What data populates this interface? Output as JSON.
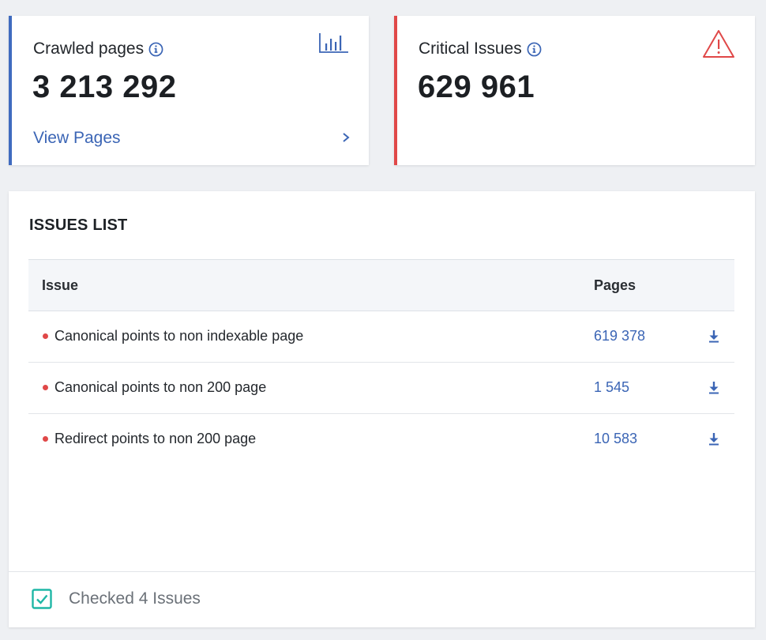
{
  "cards": {
    "crawled": {
      "label": "Crawled pages",
      "value": "3 213 292",
      "link_label": "View Pages",
      "accent_color": "#3f6bbf"
    },
    "critical": {
      "label": "Critical Issues",
      "value": "629 961",
      "accent_color": "#e04848"
    }
  },
  "issues_list": {
    "title": "ISSUES LIST",
    "columns": {
      "issue": "Issue",
      "pages": "Pages"
    },
    "rows": [
      {
        "issue": "Canonical points to non indexable page",
        "pages": "619 378"
      },
      {
        "issue": "Canonical points to non 200 page",
        "pages": "1 545"
      },
      {
        "issue": "Redirect points to non 200 page",
        "pages": "10 583"
      }
    ],
    "footer": {
      "checked_label": "Checked 4 Issues",
      "checked": true
    }
  },
  "icons": {
    "info": "info-icon",
    "chart": "bar-chart-icon",
    "warning": "warning-triangle-icon",
    "download": "download-icon",
    "chevron": "chevron-right-icon",
    "checkbox": "checkbox-checked-icon"
  },
  "colors": {
    "link": "#3b65b5",
    "critical": "#e04848",
    "check": "#1fb7a6"
  }
}
